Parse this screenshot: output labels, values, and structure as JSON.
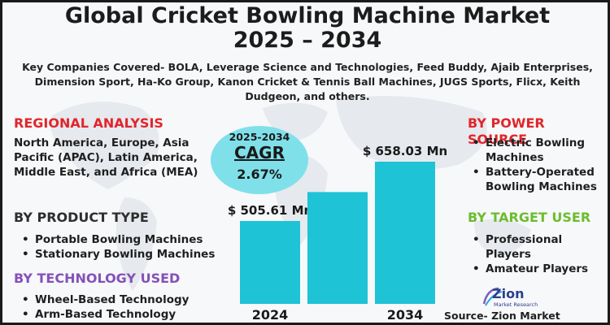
{
  "title_line1": "Global Cricket Bowling Machine Market",
  "title_line2": "2025 – 2034",
  "companies": "Key Companies Covered- BOLA, Leverage Science and Technologies, Feed Buddy, Ajaib Enterprises, Dimension Sport, Ha-Ko Group, Kanon Cricket & Tennis Ball Machines, JUGS Sports, Flicx, Keith Dudgeon, and others.",
  "regional": {
    "heading": "REGIONAL ANALYSIS",
    "text": "North America, Europe, Asia Pacific (APAC), Latin America, Middle East, and Africa (MEA)"
  },
  "product_type": {
    "heading": "BY PRODUCT TYPE",
    "items": [
      "Portable Bowling Machines",
      "Stationary Bowling Machines"
    ]
  },
  "technology": {
    "heading": "BY TECHNOLOGY USED",
    "items": [
      "Wheel-Based Technology",
      "Arm-Based Technology"
    ]
  },
  "power_source": {
    "heading": "BY POWER SOURCE",
    "items": [
      "Electric Bowling Machines",
      "Battery-Operated Bowling Machines"
    ]
  },
  "target_user": {
    "heading": "BY TARGET USER",
    "items": [
      "Professional Players",
      "Amateur Players"
    ]
  },
  "cagr": {
    "period": "2025-2034",
    "label": "CAGR",
    "value": "2.67%"
  },
  "chart_data": {
    "type": "bar",
    "categories": [
      "2024",
      "",
      "2034"
    ],
    "values": [
      505.61,
      580,
      658.03
    ],
    "data_labels": [
      "$ 505.61 Mn",
      "",
      "$ 658.03 Mn"
    ],
    "title": "",
    "xlabel": "",
    "ylabel": "",
    "bar_color": "#1ec3d6"
  },
  "logo": {
    "name": "Zion",
    "sub": "Market Research"
  },
  "source": "Source- Zion Market Research",
  "colors": {
    "red_heading": "#e0262b",
    "green_heading": "#6bbd2e",
    "purple_heading": "#8451b8",
    "dark_heading": "#2e2e2e",
    "bar": "#1ec3d6",
    "cagr_circle": "#7fe0ea"
  }
}
